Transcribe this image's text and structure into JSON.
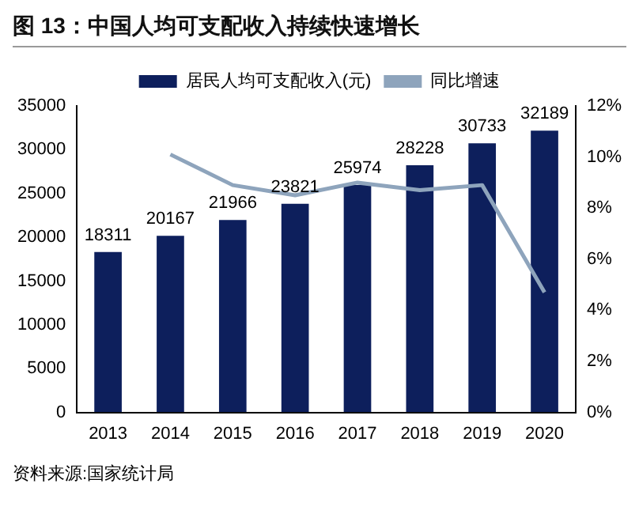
{
  "chart_data": {
    "type": "bar",
    "title": "图 13：中国人均可支配收入持续快速增长",
    "categories": [
      "2013",
      "2014",
      "2015",
      "2016",
      "2017",
      "2018",
      "2019",
      "2020"
    ],
    "series": [
      {
        "name": "居民人均可支配收入(元)",
        "color": "#0d1f5c",
        "values": [
          18311,
          20167,
          21966,
          23821,
          25974,
          28228,
          30733,
          32189
        ],
        "value_labels": [
          "18311",
          "20167",
          "21966",
          "23821",
          "25974",
          "28228",
          "30733",
          "32189"
        ]
      },
      {
        "name": "同比增速",
        "type": "line",
        "axis": "y2",
        "color": "#8ea4bc",
        "values": [
          null,
          10.1,
          8.9,
          8.5,
          9.0,
          8.7,
          8.9,
          4.7
        ]
      }
    ],
    "ylim": [
      0,
      35000
    ],
    "yticks": [
      0,
      5000,
      10000,
      15000,
      20000,
      25000,
      30000,
      35000
    ],
    "y2lim": [
      0,
      12
    ],
    "y2ticks": [
      {
        "value": 0,
        "label": "0%"
      },
      {
        "value": 2,
        "label": "2%"
      },
      {
        "value": 4,
        "label": "4%"
      },
      {
        "value": 6,
        "label": "6%"
      },
      {
        "value": 8,
        "label": "8%"
      },
      {
        "value": 10,
        "label": "10%"
      },
      {
        "value": 12,
        "label": "12%"
      }
    ],
    "grid": false,
    "legend": "top",
    "marker": "none",
    "annotations": [
      "资料来源:国家统计局"
    ]
  }
}
